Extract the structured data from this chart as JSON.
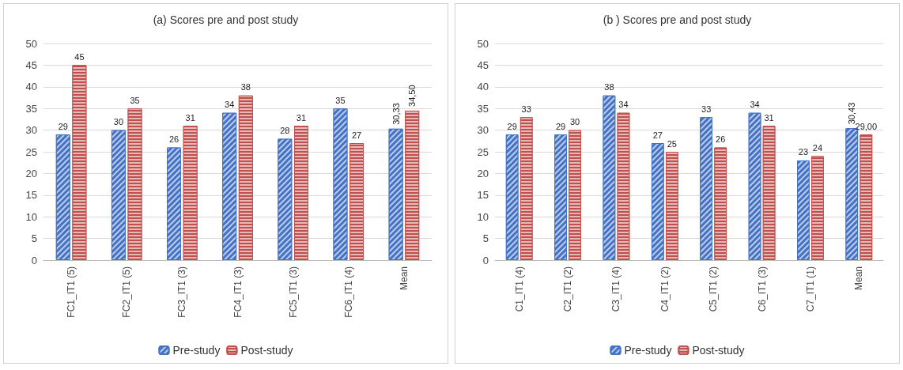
{
  "chart_data": [
    {
      "type": "bar",
      "title": "(a) Scores pre and post study",
      "categories": [
        "FC1_IT1 (5)",
        "FC2_IT1 (5)",
        "FC3_IT1 (3)",
        "FC4_IT1 (3)",
        "FC5_IT1 (3)",
        "FC6_IT1 (4)",
        "Mean"
      ],
      "series": [
        {
          "name": "Pre-study",
          "color": "#4472c4",
          "values": [
            29,
            30,
            26,
            34,
            28,
            35,
            30.33
          ],
          "value_labels": [
            "29",
            "30",
            "26",
            "34",
            "28",
            "35",
            "30,33"
          ]
        },
        {
          "name": "Post-study",
          "color": "#c0504d",
          "values": [
            45,
            35,
            31,
            38,
            31,
            27,
            34.5
          ],
          "value_labels": [
            "45",
            "35",
            "31",
            "38",
            "31",
            "27",
            "34,50"
          ]
        }
      ],
      "ylim": [
        0,
        50
      ],
      "yticks": [
        0,
        5,
        10,
        15,
        20,
        25,
        30,
        35,
        40,
        45,
        50
      ],
      "grid": "y",
      "legend": "bottom"
    },
    {
      "type": "bar",
      "title": "(b ) Scores pre and post study",
      "categories": [
        "C1_IT1 (4)",
        "C2_IT1 (2)",
        "C3_IT1 (4)",
        "C4_IT1 (2)",
        "C5_IT1 (2)",
        "C6_IT1 (3)",
        "C7_IT1 (1)",
        "Mean"
      ],
      "series": [
        {
          "name": "Pre-study",
          "color": "#4472c4",
          "values": [
            29,
            29,
            38,
            27,
            33,
            34,
            23,
            30.43
          ],
          "value_labels": [
            "29",
            "29",
            "38",
            "27",
            "33",
            "34",
            "23",
            "30,43"
          ]
        },
        {
          "name": "Post-study",
          "color": "#c0504d",
          "values": [
            33,
            30,
            34,
            25,
            26,
            31,
            24,
            29.0
          ],
          "value_labels": [
            "33",
            "30",
            "34",
            "25",
            "26",
            "31",
            "24",
            "29,00"
          ]
        }
      ],
      "ylim": [
        0,
        50
      ],
      "yticks": [
        0,
        5,
        10,
        15,
        20,
        25,
        30,
        35,
        40,
        45,
        50
      ],
      "grid": "y",
      "legend": "bottom"
    }
  ]
}
